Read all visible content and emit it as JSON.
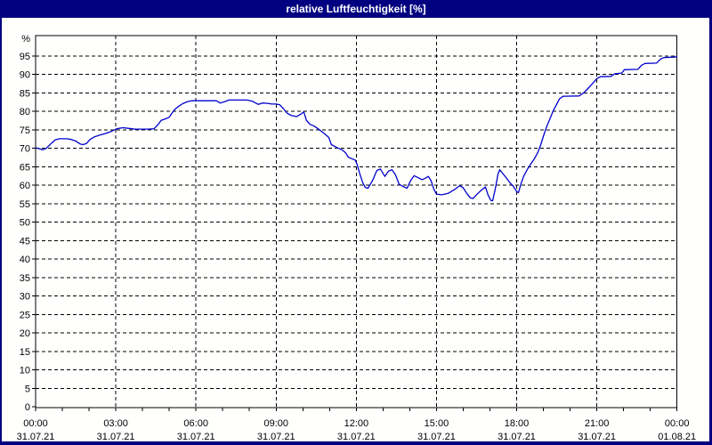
{
  "title": "relative Luftfeuchtigkeit [%]",
  "colors": {
    "window_frame": "#000080",
    "title_text": "#ffffff",
    "panel_background": "#fffffe",
    "grid": "#000000",
    "axis": "#000000",
    "tick_text": "#000000",
    "series_line": "#0000cd"
  },
  "chart_data": {
    "type": "line",
    "title": "relative Luftfeuchtigkeit [%]",
    "ylabel": "%",
    "unit_label": "%",
    "ylim": [
      0,
      100
    ],
    "grid": "dashed",
    "legend": "none",
    "y_ticks": [
      0,
      5,
      10,
      15,
      20,
      25,
      30,
      35,
      40,
      45,
      50,
      55,
      60,
      65,
      70,
      75,
      80,
      85,
      90,
      95
    ],
    "x_minor_tick_minutes": 60,
    "x_ticks": [
      {
        "minutes": 0,
        "time": "00:00",
        "date": "31.07.21"
      },
      {
        "minutes": 180,
        "time": "03:00",
        "date": "31.07.21"
      },
      {
        "minutes": 360,
        "time": "06:00",
        "date": "31.07.21"
      },
      {
        "minutes": 540,
        "time": "09:00",
        "date": "31.07.21"
      },
      {
        "minutes": 720,
        "time": "12:00",
        "date": "31.07.21"
      },
      {
        "minutes": 900,
        "time": "15:00",
        "date": "31.07.21"
      },
      {
        "minutes": 1080,
        "time": "18:00",
        "date": "31.07.21"
      },
      {
        "minutes": 1260,
        "time": "21:00",
        "date": "31.07.21"
      },
      {
        "minutes": 1440,
        "time": "00:00",
        "date": "01.08.21"
      }
    ],
    "series": [
      {
        "name": "relative Luftfeuchtigkeit",
        "unit": "%",
        "points": [
          [
            0,
            70.2
          ],
          [
            8,
            69.9
          ],
          [
            16,
            69.6
          ],
          [
            24,
            70.0
          ],
          [
            34,
            71.2
          ],
          [
            44,
            72.3
          ],
          [
            54,
            72.6
          ],
          [
            70,
            72.6
          ],
          [
            80,
            72.4
          ],
          [
            90,
            72.0
          ],
          [
            100,
            71.2
          ],
          [
            106,
            71.0
          ],
          [
            114,
            71.3
          ],
          [
            122,
            72.4
          ],
          [
            132,
            73.1
          ],
          [
            144,
            73.6
          ],
          [
            156,
            74.0
          ],
          [
            170,
            74.6
          ],
          [
            182,
            75.3
          ],
          [
            196,
            75.6
          ],
          [
            210,
            75.4
          ],
          [
            224,
            75.2
          ],
          [
            252,
            75.2
          ],
          [
            266,
            75.3
          ],
          [
            274,
            76.3
          ],
          [
            282,
            77.6
          ],
          [
            292,
            78.0
          ],
          [
            300,
            78.4
          ],
          [
            306,
            79.5
          ],
          [
            312,
            80.5
          ],
          [
            320,
            81.3
          ],
          [
            330,
            82.1
          ],
          [
            340,
            82.6
          ],
          [
            350,
            82.9
          ],
          [
            406,
            82.9
          ],
          [
            414,
            82.3
          ],
          [
            424,
            82.6
          ],
          [
            434,
            83.1
          ],
          [
            474,
            83.1
          ],
          [
            486,
            82.8
          ],
          [
            500,
            81.9
          ],
          [
            510,
            82.3
          ],
          [
            520,
            82.2
          ],
          [
            530,
            82.0
          ],
          [
            540,
            82.0
          ],
          [
            548,
            81.8
          ],
          [
            556,
            80.8
          ],
          [
            564,
            79.6
          ],
          [
            574,
            78.9
          ],
          [
            586,
            78.6
          ],
          [
            596,
            79.3
          ],
          [
            602,
            79.9
          ],
          [
            608,
            77.6
          ],
          [
            616,
            76.5
          ],
          [
            626,
            76.0
          ],
          [
            634,
            75.3
          ],
          [
            644,
            74.4
          ],
          [
            652,
            73.6
          ],
          [
            658,
            73.0
          ],
          [
            664,
            71.0
          ],
          [
            672,
            70.5
          ],
          [
            680,
            70.0
          ],
          [
            688,
            69.6
          ],
          [
            696,
            68.8
          ],
          [
            702,
            67.6
          ],
          [
            712,
            67.1
          ],
          [
            718,
            66.8
          ],
          [
            722,
            65.5
          ],
          [
            728,
            63.0
          ],
          [
            734,
            60.8
          ],
          [
            740,
            59.4
          ],
          [
            746,
            59.2
          ],
          [
            756,
            61.2
          ],
          [
            766,
            64.0
          ],
          [
            774,
            64.4
          ],
          [
            784,
            62.4
          ],
          [
            792,
            63.8
          ],
          [
            800,
            64.2
          ],
          [
            808,
            62.8
          ],
          [
            816,
            60.3
          ],
          [
            826,
            59.6
          ],
          [
            834,
            59.2
          ],
          [
            842,
            61.3
          ],
          [
            850,
            62.6
          ],
          [
            860,
            62.0
          ],
          [
            868,
            61.5
          ],
          [
            876,
            62.0
          ],
          [
            882,
            62.4
          ],
          [
            888,
            61.2
          ],
          [
            894,
            59.0
          ],
          [
            900,
            57.6
          ],
          [
            912,
            57.4
          ],
          [
            926,
            57.8
          ],
          [
            940,
            58.8
          ],
          [
            952,
            59.9
          ],
          [
            960,
            59.3
          ],
          [
            968,
            57.8
          ],
          [
            976,
            56.6
          ],
          [
            982,
            56.4
          ],
          [
            992,
            57.7
          ],
          [
            1002,
            58.8
          ],
          [
            1010,
            59.5
          ],
          [
            1016,
            57.3
          ],
          [
            1022,
            55.9
          ],
          [
            1026,
            55.8
          ],
          [
            1032,
            59.0
          ],
          [
            1038,
            63.0
          ],
          [
            1042,
            64.2
          ],
          [
            1048,
            63.3
          ],
          [
            1056,
            62.1
          ],
          [
            1064,
            60.8
          ],
          [
            1072,
            59.8
          ],
          [
            1080,
            58.3
          ],
          [
            1084,
            58.0
          ],
          [
            1090,
            60.5
          ],
          [
            1096,
            62.5
          ],
          [
            1104,
            64.3
          ],
          [
            1112,
            65.8
          ],
          [
            1120,
            67.2
          ],
          [
            1128,
            69.0
          ],
          [
            1134,
            71.0
          ],
          [
            1140,
            73.3
          ],
          [
            1146,
            75.5
          ],
          [
            1154,
            77.8
          ],
          [
            1162,
            80.2
          ],
          [
            1170,
            82.0
          ],
          [
            1176,
            83.4
          ],
          [
            1184,
            84.1
          ],
          [
            1220,
            84.2
          ],
          [
            1230,
            85.0
          ],
          [
            1240,
            86.2
          ],
          [
            1250,
            87.5
          ],
          [
            1260,
            88.9
          ],
          [
            1268,
            89.4
          ],
          [
            1292,
            89.5
          ],
          [
            1300,
            90.2
          ],
          [
            1316,
            90.4
          ],
          [
            1322,
            91.3
          ],
          [
            1352,
            91.4
          ],
          [
            1360,
            92.5
          ],
          [
            1368,
            93.0
          ],
          [
            1394,
            93.1
          ],
          [
            1402,
            94.1
          ],
          [
            1410,
            94.6
          ],
          [
            1432,
            94.7
          ],
          [
            1440,
            94.8
          ]
        ]
      }
    ]
  }
}
